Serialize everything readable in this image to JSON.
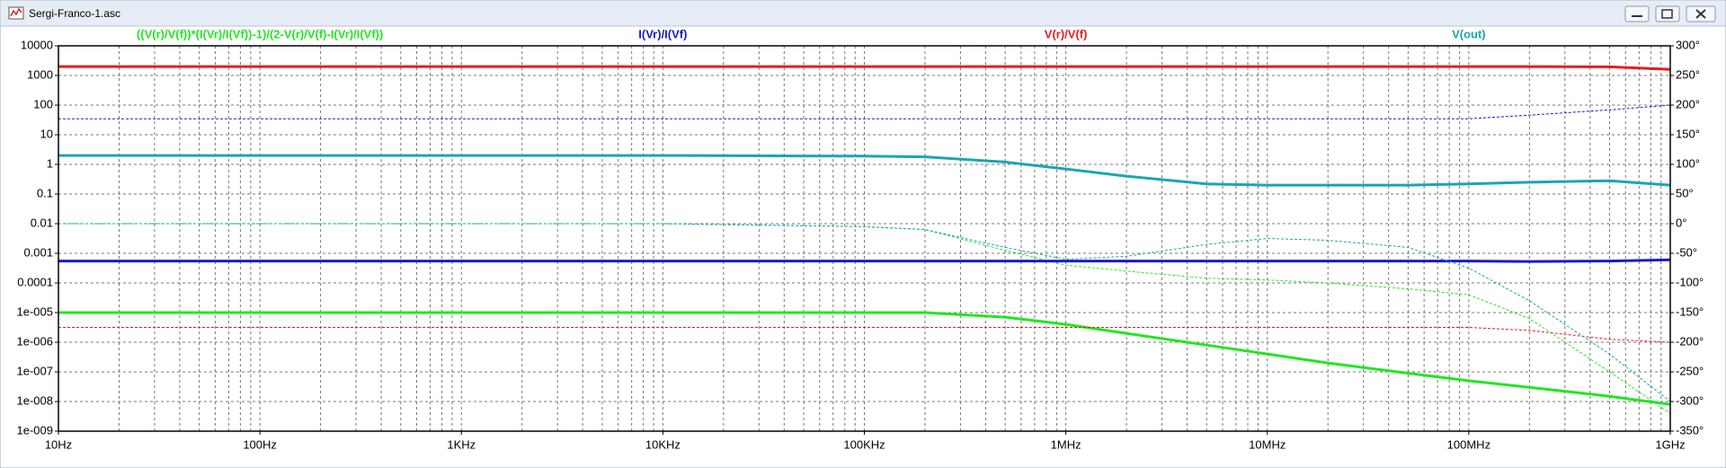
{
  "window": {
    "title": "Sergi-Franco-1.asc"
  },
  "chart_data": {
    "type": "line",
    "x": [
      10,
      100,
      1000,
      10000,
      100000,
      200000,
      500000,
      1000000,
      2000000,
      5000000,
      10000000,
      20000000,
      50000000,
      100000000,
      200000000,
      500000000,
      1000000000
    ],
    "log_x": true,
    "log_y": true,
    "grid": true,
    "series": [
      {
        "name": "((V(r)/V(f))*(I(Vr)/I(Vf))-1)/(2-V(r)/V(f)-I(Vr)/I(Vf))",
        "color": "#22e622",
        "values": [
          1e-05,
          1e-05,
          1e-05,
          1e-05,
          1e-05,
          1e-05,
          7e-06,
          4e-06,
          2e-06,
          8e-07,
          4e-07,
          2e-07,
          9e-08,
          5e-08,
          3e-08,
          1.5e-08,
          8e-09
        ],
        "phase": [
          0,
          0,
          0,
          0,
          -5,
          -10,
          -45,
          -70,
          -80,
          -92,
          -95,
          -100,
          -110,
          -120,
          -160,
          -250,
          -320
        ]
      },
      {
        "name": "I(Vr)/I(Vf)",
        "color": "#1a1ac8",
        "values": [
          0.00055,
          0.00055,
          0.00055,
          0.00055,
          0.00055,
          0.00055,
          0.00055,
          0.00055,
          0.00055,
          0.00055,
          0.00055,
          0.00055,
          0.00055,
          0.00055,
          0.00053,
          0.00055,
          0.0006
        ],
        "phase": [
          177,
          177,
          177,
          177,
          177,
          177,
          177,
          177,
          177,
          177,
          177,
          177,
          177,
          177,
          183,
          192,
          200
        ]
      },
      {
        "name": "V(r)/V(f)",
        "color": "#e61e1e",
        "values": [
          2000,
          2000,
          2000,
          2000,
          2000,
          2000,
          2000,
          2000,
          2000,
          2000,
          2000,
          2000,
          2000,
          2000,
          2000,
          1950,
          1600
        ],
        "phase": [
          -175,
          -175,
          -175,
          -175,
          -175,
          -175,
          -175,
          -175,
          -175,
          -175,
          -175,
          -175,
          -175,
          -175,
          -180,
          -195,
          -200
        ]
      },
      {
        "name": "V(out)",
        "color": "#1aa5b4",
        "values": [
          2,
          2,
          2,
          2,
          1.9,
          1.8,
          1.2,
          0.7,
          0.4,
          0.22,
          0.2,
          0.2,
          0.2,
          0.22,
          0.25,
          0.28,
          0.2
        ],
        "phase": [
          0,
          0,
          0,
          0,
          -5,
          -10,
          -40,
          -60,
          -55,
          -35,
          -25,
          -28,
          -40,
          -75,
          -130,
          -220,
          -300
        ]
      }
    ],
    "xlim": [
      10,
      1000000000
    ],
    "xticks": [
      {
        "value": 10,
        "label": "10Hz"
      },
      {
        "value": 100,
        "label": "100Hz"
      },
      {
        "value": 1000,
        "label": "1KHz"
      },
      {
        "value": 10000,
        "label": "10KHz"
      },
      {
        "value": 100000,
        "label": "100KHz"
      },
      {
        "value": 1000000,
        "label": "1MHz"
      },
      {
        "value": 10000000,
        "label": "10MHz"
      },
      {
        "value": 100000000,
        "label": "100MHz"
      },
      {
        "value": 1000000000,
        "label": "1GHz"
      }
    ],
    "ylim": [
      1e-09,
      10000
    ],
    "yticks": [
      10000,
      1000,
      100,
      10,
      1,
      0.1,
      0.01,
      0.001,
      0.0001,
      {
        "value": 1e-05,
        "label": "1e-005"
      },
      {
        "value": 1e-06,
        "label": "1e-006"
      },
      {
        "value": 1e-07,
        "label": "1e-007"
      },
      {
        "value": 1e-08,
        "label": "1e-008"
      },
      {
        "value": 1e-09,
        "label": "1e-009"
      }
    ],
    "y2lim": [
      -350,
      300
    ],
    "y2ticks": [
      {
        "value": 300,
        "label": "300°"
      },
      {
        "value": 250,
        "label": "250°"
      },
      {
        "value": 200,
        "label": "200°"
      },
      {
        "value": 150,
        "label": "150°"
      },
      {
        "value": 100,
        "label": "100°"
      },
      {
        "value": 50,
        "label": "50°"
      },
      {
        "value": 0,
        "label": "0°"
      },
      {
        "value": -50,
        "label": "-50°"
      },
      {
        "value": -100,
        "label": "-100°"
      },
      {
        "value": -150,
        "label": "-150°"
      },
      {
        "value": -200,
        "label": "-200°"
      },
      {
        "value": -250,
        "label": "-250°"
      },
      {
        "value": -300,
        "label": "-300°"
      },
      {
        "value": -350,
        "label": "-350°"
      }
    ]
  }
}
